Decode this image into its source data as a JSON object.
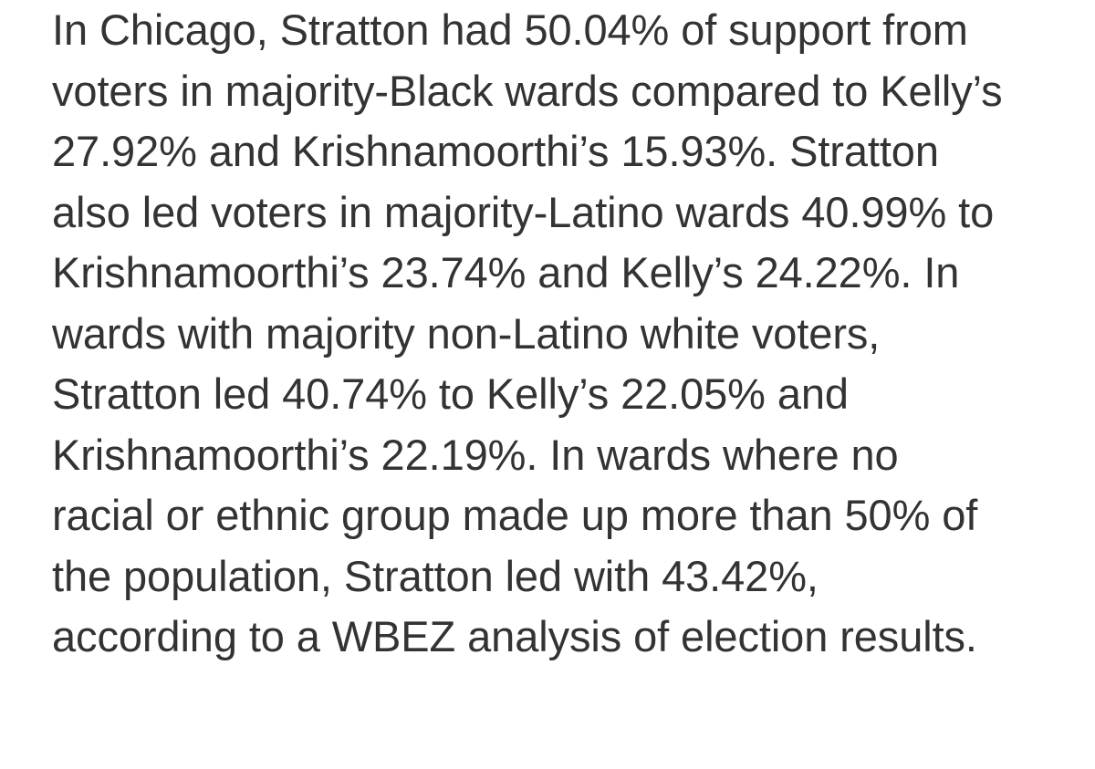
{
  "article": {
    "lines": [
      "In Chicago, Stratton had 50.04% of support from",
      "voters in majority-Black wards compared to Kelly’s",
      "27.92% and Krishnamoorthi’s 15.93%. Stratton",
      "also led voters in majority-Latino wards 40.99% to",
      "Krishnamoorthi’s 23.74% and Kelly’s 24.22%. In",
      "wards with majority non-Latino white voters,",
      "Stratton led 40.74% to Kelly’s 22.05% and",
      "Krishnamoorthi’s 22.19%. In wards where no",
      "racial or ethnic group made up more than 50% of",
      "the population, Stratton led with 43.42%,",
      "according to a WBEZ analysis of election results."
    ]
  }
}
